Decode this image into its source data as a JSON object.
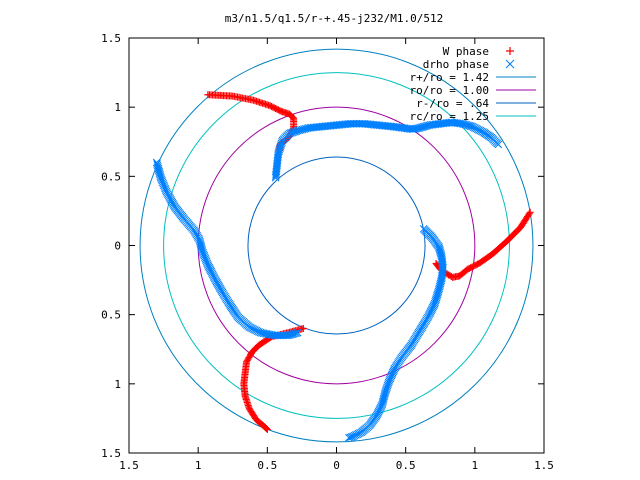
{
  "chart_data": {
    "type": "scatter",
    "title": "m3/n1.5/q1.5/r-+.45-j232/M1.0/512",
    "xlabel": "",
    "ylabel": "",
    "xlim": [
      -1.5,
      1.5
    ],
    "ylim": [
      -1.5,
      1.5
    ],
    "x_ticks": [
      -1.5,
      -1,
      -0.5,
      0,
      0.5,
      1,
      1.5
    ],
    "y_ticks": [
      -1.5,
      -1,
      -0.5,
      0,
      0.5,
      1,
      1.5
    ],
    "x_tick_labels": [
      "1.5",
      "1",
      "0.5",
      "0",
      "0.5",
      "1",
      "1.5"
    ],
    "y_tick_labels": [
      "1.5",
      "1",
      "0.5",
      "0",
      "0.5",
      "1",
      "1.5"
    ],
    "grid": false,
    "legend_position": "top-right",
    "series": [
      {
        "name": "W phase",
        "marker": "plus",
        "color": "#ff0000",
        "points": [
          [
            -0.93,
            1.09
          ],
          [
            -0.75,
            1.08
          ],
          [
            -0.6,
            1.05
          ],
          [
            -0.48,
            1.01
          ],
          [
            -0.4,
            0.97
          ],
          [
            -0.34,
            0.95
          ],
          [
            -0.31,
            0.92
          ],
          [
            -0.31,
            0.85
          ],
          [
            -0.34,
            0.79
          ],
          [
            -0.37,
            0.76
          ],
          [
            -0.4,
            0.74
          ],
          [
            -0.41,
            0.72
          ],
          [
            -0.41,
            0.69
          ],
          [
            1.4,
            0.24
          ],
          [
            1.33,
            0.13
          ],
          [
            1.23,
            0.03
          ],
          [
            1.13,
            -0.06
          ],
          [
            1.03,
            -0.13
          ],
          [
            0.95,
            -0.17
          ],
          [
            0.89,
            -0.22
          ],
          [
            0.84,
            -0.23
          ],
          [
            0.79,
            -0.2
          ],
          [
            0.75,
            -0.17
          ],
          [
            0.72,
            -0.13
          ],
          [
            -0.24,
            -0.6
          ],
          [
            -0.35,
            -0.63
          ],
          [
            -0.47,
            -0.66
          ],
          [
            -0.56,
            -0.72
          ],
          [
            -0.61,
            -0.77
          ],
          [
            -0.65,
            -0.84
          ],
          [
            -0.66,
            -0.92
          ],
          [
            -0.67,
            -1.0
          ],
          [
            -0.66,
            -1.09
          ],
          [
            -0.63,
            -1.18
          ],
          [
            -0.58,
            -1.26
          ],
          [
            -0.52,
            -1.31
          ],
          [
            -0.5,
            -1.33
          ]
        ]
      },
      {
        "name": "drho phase",
        "marker": "cross",
        "color": "#0080ff",
        "points": [
          [
            -0.44,
            0.49
          ],
          [
            -0.43,
            0.58
          ],
          [
            -0.42,
            0.67
          ],
          [
            -0.39,
            0.76
          ],
          [
            -0.34,
            0.81
          ],
          [
            -0.28,
            0.83
          ],
          [
            -0.2,
            0.85
          ],
          [
            -0.1,
            0.86
          ],
          [
            0.0,
            0.87
          ],
          [
            0.1,
            0.88
          ],
          [
            0.2,
            0.88
          ],
          [
            0.3,
            0.87
          ],
          [
            0.4,
            0.86
          ],
          [
            0.48,
            0.85
          ],
          [
            0.55,
            0.84
          ],
          [
            0.6,
            0.85
          ],
          [
            0.67,
            0.87
          ],
          [
            0.75,
            0.88
          ],
          [
            0.83,
            0.89
          ],
          [
            0.91,
            0.88
          ],
          [
            0.98,
            0.86
          ],
          [
            1.06,
            0.82
          ],
          [
            1.12,
            0.78
          ],
          [
            1.17,
            0.73
          ],
          [
            0.63,
            0.12
          ],
          [
            0.69,
            0.06
          ],
          [
            0.74,
            -0.01
          ],
          [
            0.76,
            -0.08
          ],
          [
            0.77,
            -0.16
          ],
          [
            0.76,
            -0.24
          ],
          [
            0.74,
            -0.32
          ],
          [
            0.71,
            -0.42
          ],
          [
            0.66,
            -0.52
          ],
          [
            0.6,
            -0.62
          ],
          [
            0.54,
            -0.72
          ],
          [
            0.47,
            -0.81
          ],
          [
            0.42,
            -0.89
          ],
          [
            0.38,
            -0.98
          ],
          [
            0.35,
            -1.07
          ],
          [
            0.33,
            -1.15
          ],
          [
            0.29,
            -1.23
          ],
          [
            0.24,
            -1.3
          ],
          [
            0.18,
            -1.35
          ],
          [
            0.12,
            -1.38
          ],
          [
            0.09,
            -1.39
          ],
          [
            -1.3,
            0.6
          ],
          [
            -1.27,
            0.49
          ],
          [
            -1.23,
            0.39
          ],
          [
            -1.17,
            0.28
          ],
          [
            -1.1,
            0.19
          ],
          [
            -1.03,
            0.11
          ],
          [
            -0.99,
            0.04
          ],
          [
            -0.97,
            -0.04
          ],
          [
            -0.93,
            -0.14
          ],
          [
            -0.88,
            -0.24
          ],
          [
            -0.83,
            -0.33
          ],
          [
            -0.77,
            -0.43
          ],
          [
            -0.71,
            -0.52
          ],
          [
            -0.63,
            -0.59
          ],
          [
            -0.55,
            -0.63
          ],
          [
            -0.45,
            -0.65
          ],
          [
            -0.35,
            -0.65
          ],
          [
            -0.28,
            -0.63
          ]
        ]
      }
    ],
    "circles": [
      {
        "name": "r+/ro = 1.42",
        "r": 1.42,
        "color": "#0080c0"
      },
      {
        "name": "ro/ro = 1.00",
        "r": 1.0,
        "color": "#a000a0"
      },
      {
        "name": "r-/ro = .64",
        "r": 0.64,
        "color": "#0060c0"
      },
      {
        "name": "rc/ro = 1.25",
        "r": 1.25,
        "color": "#00c0c0"
      }
    ]
  }
}
